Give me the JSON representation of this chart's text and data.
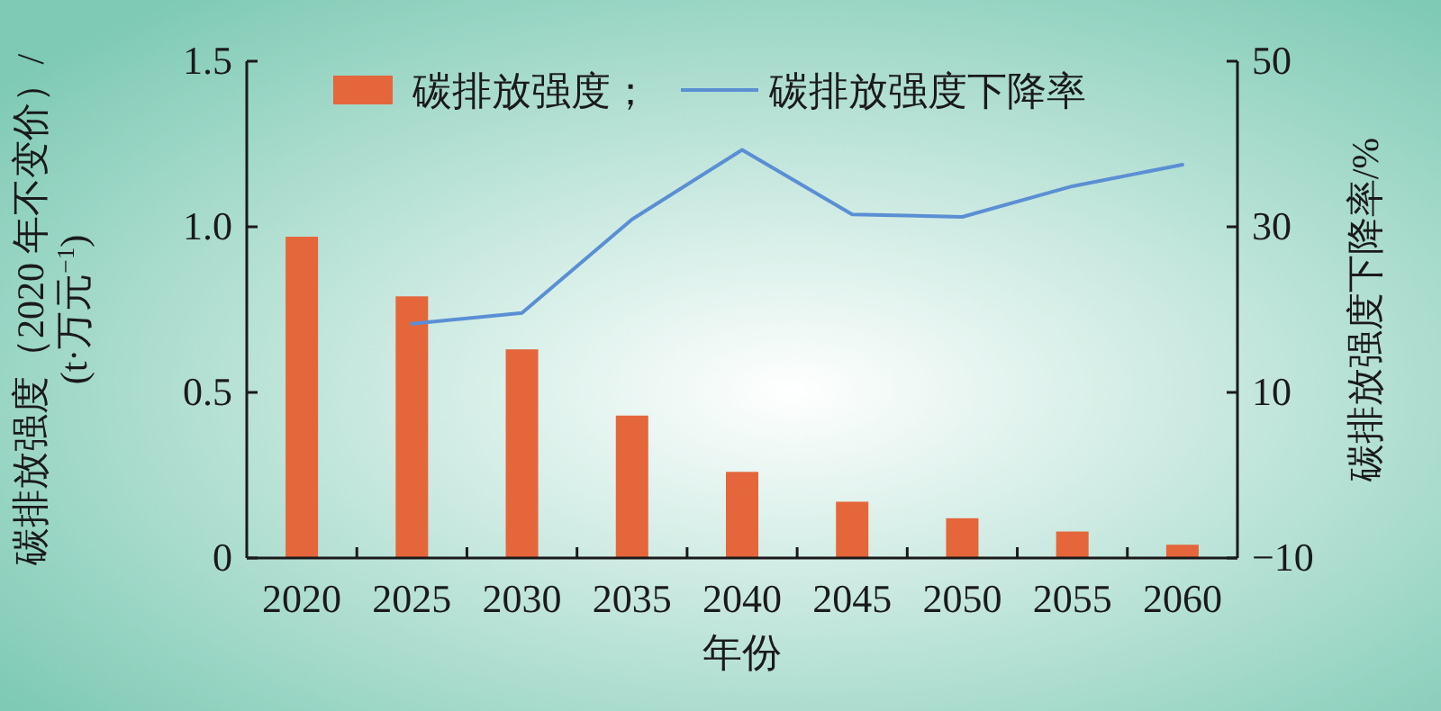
{
  "chart_data": {
    "type": "bar",
    "xlabel": "年份",
    "ylabel": "碳排放强度（2020 年不变价）/\n(t·万元$^{−1}$)",
    "y2label": "碳排放强度下降率/%",
    "categories": [
      "2020",
      "2025",
      "2030",
      "2035",
      "2040",
      "2045",
      "2050",
      "2055",
      "2060"
    ],
    "series": [
      {
        "name": "碳排放强度；",
        "color": "#e4663a",
        "values": [
          0.97,
          0.79,
          0.63,
          0.43,
          0.26,
          0.17,
          0.12,
          0.08,
          0.04
        ]
      },
      {
        "name": "碳排放强度下降率",
        "type": "line",
        "axis": "y2",
        "color": "#5b8fd4",
        "values": [
          null,
          18.3,
          19.6,
          30.9,
          39.3,
          31.5,
          31.2,
          34.9,
          37.5
        ]
      }
    ],
    "ylim": [
      0,
      1.5
    ],
    "yticks": [
      0,
      0.5,
      {
        "value": 1,
        "label": "1.0"
      },
      1.5
    ],
    "y2lim": [
      -10,
      50
    ],
    "y2ticks": [
      {
        "value": -10,
        "label": "−10"
      },
      10,
      30,
      50
    ],
    "legend": "top",
    "grid": false,
    "marker": "none",
    "line_style": "solid"
  }
}
